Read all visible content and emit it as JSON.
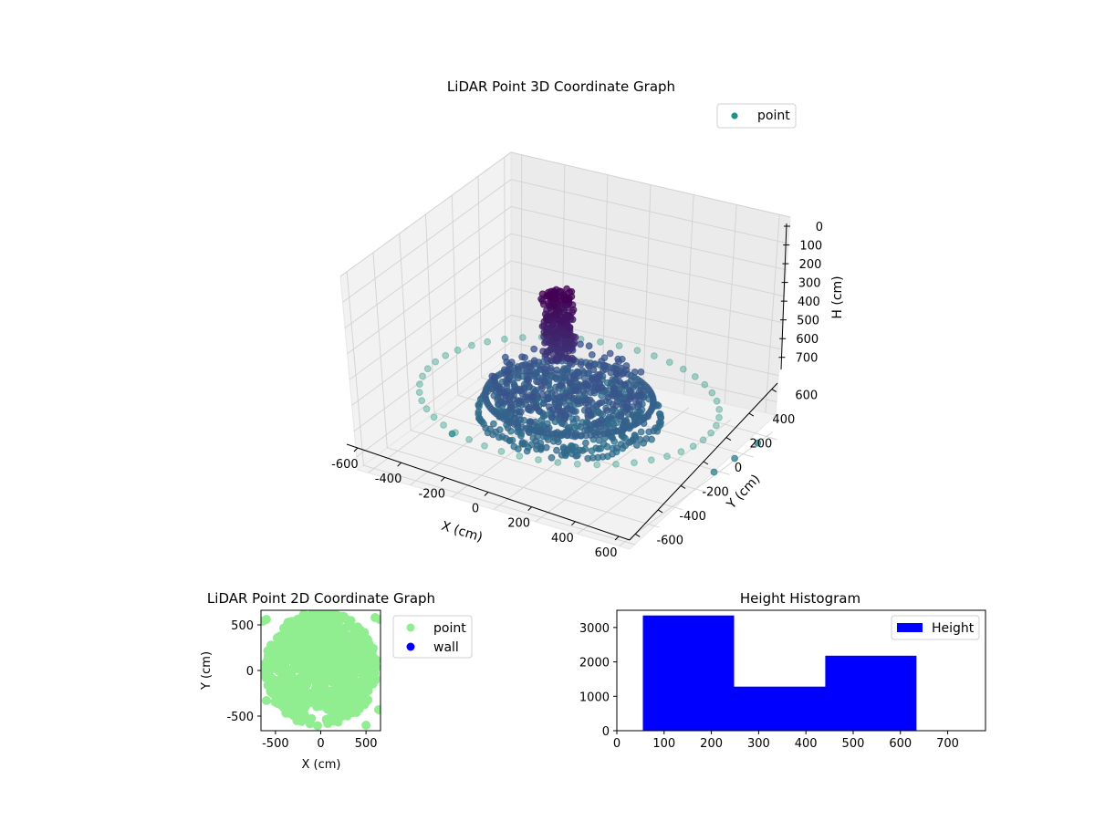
{
  "chart_data": [
    {
      "type": "scatter",
      "projection": "3d",
      "title": "LiDAR Point 3D Coordinate Graph",
      "xlabel": "X (cm)",
      "ylabel": "Y (cm)",
      "zlabel": "H (cm)",
      "xlim": [
        -650,
        650
      ],
      "ylim": [
        -650,
        650
      ],
      "zlim": [
        0,
        750
      ],
      "z_inverted": true,
      "xticks": [
        -600,
        -400,
        -200,
        0,
        200,
        400,
        600
      ],
      "yticks": [
        -600,
        -400,
        -200,
        0,
        200,
        400,
        600
      ],
      "zticks": [
        0,
        100,
        200,
        300,
        400,
        500,
        600,
        700
      ],
      "colormap": "viridis",
      "legend": {
        "position": "upper-right",
        "entries": [
          {
            "label": "point",
            "color": "#21908c"
          }
        ]
      },
      "series": [
        {
          "name": "point",
          "components": [
            {
              "shape": "outer-ring",
              "radius": 640,
              "height": 550,
              "count": 48
            },
            {
              "shape": "dense-ring",
              "radius": 380,
              "height": 600,
              "count": 110
            },
            {
              "shape": "bowl",
              "radius": 330,
              "height_range": [
                300,
                650
              ]
            },
            {
              "shape": "central-column",
              "center": [
                0,
                -80
              ],
              "height_range": [
                100,
                350
              ]
            }
          ],
          "outliers": [
            {
              "x": -430,
              "y": 120,
              "h": 730
            },
            {
              "x": -480,
              "y": -150,
              "h": 740
            },
            {
              "x": 140,
              "y": -480,
              "h": 730
            },
            {
              "x": 200,
              "y": -460,
              "h": 740
            },
            {
              "x": 420,
              "y": -420,
              "h": 730
            },
            {
              "x": 510,
              "y": -400,
              "h": 740
            },
            {
              "x": 620,
              "y": 120,
              "h": 720
            },
            {
              "x": 640,
              "y": 260,
              "h": 710
            },
            {
              "x": 620,
              "y": -560,
              "h": 720
            },
            {
              "x": 660,
              "y": 420,
              "h": 700
            }
          ]
        }
      ]
    },
    {
      "type": "scatter",
      "title": "LiDAR Point 2D Coordinate Graph",
      "xlabel": "X (cm)",
      "ylabel": "Y (cm)",
      "xlim": [
        -660,
        660
      ],
      "ylim": [
        -660,
        660
      ],
      "xticks": [
        -500,
        0,
        500
      ],
      "yticks": [
        -500,
        0,
        500
      ],
      "legend": {
        "position": "outside-right",
        "entries": [
          {
            "label": "point",
            "color": "#90ee90"
          },
          {
            "label": "wall",
            "color": "#0000ff"
          }
        ]
      },
      "series": [
        {
          "name": "point",
          "color": "#90ee90",
          "extent": {
            "x": [
              -660,
              660
            ],
            "y": [
              -600,
              660
            ]
          }
        },
        {
          "name": "wall",
          "color": "#0000ff",
          "values": []
        }
      ]
    },
    {
      "type": "bar",
      "subtype": "histogram",
      "title": "Height Histogram",
      "xlim": [
        0,
        780
      ],
      "ylim": [
        0,
        3500
      ],
      "xticks": [
        0,
        100,
        200,
        300,
        400,
        500,
        600,
        700
      ],
      "yticks": [
        0,
        1000,
        2000,
        3000
      ],
      "legend": {
        "position": "upper-right",
        "entries": [
          {
            "label": "Height",
            "color": "#0000ff"
          }
        ]
      },
      "series": [
        {
          "name": "Height",
          "color": "#0000ff",
          "bins": [
            {
              "from": 55,
              "to": 248,
              "count": 3350
            },
            {
              "from": 248,
              "to": 441,
              "count": 1280
            },
            {
              "from": 441,
              "to": 634,
              "count": 2180
            }
          ]
        }
      ]
    }
  ]
}
